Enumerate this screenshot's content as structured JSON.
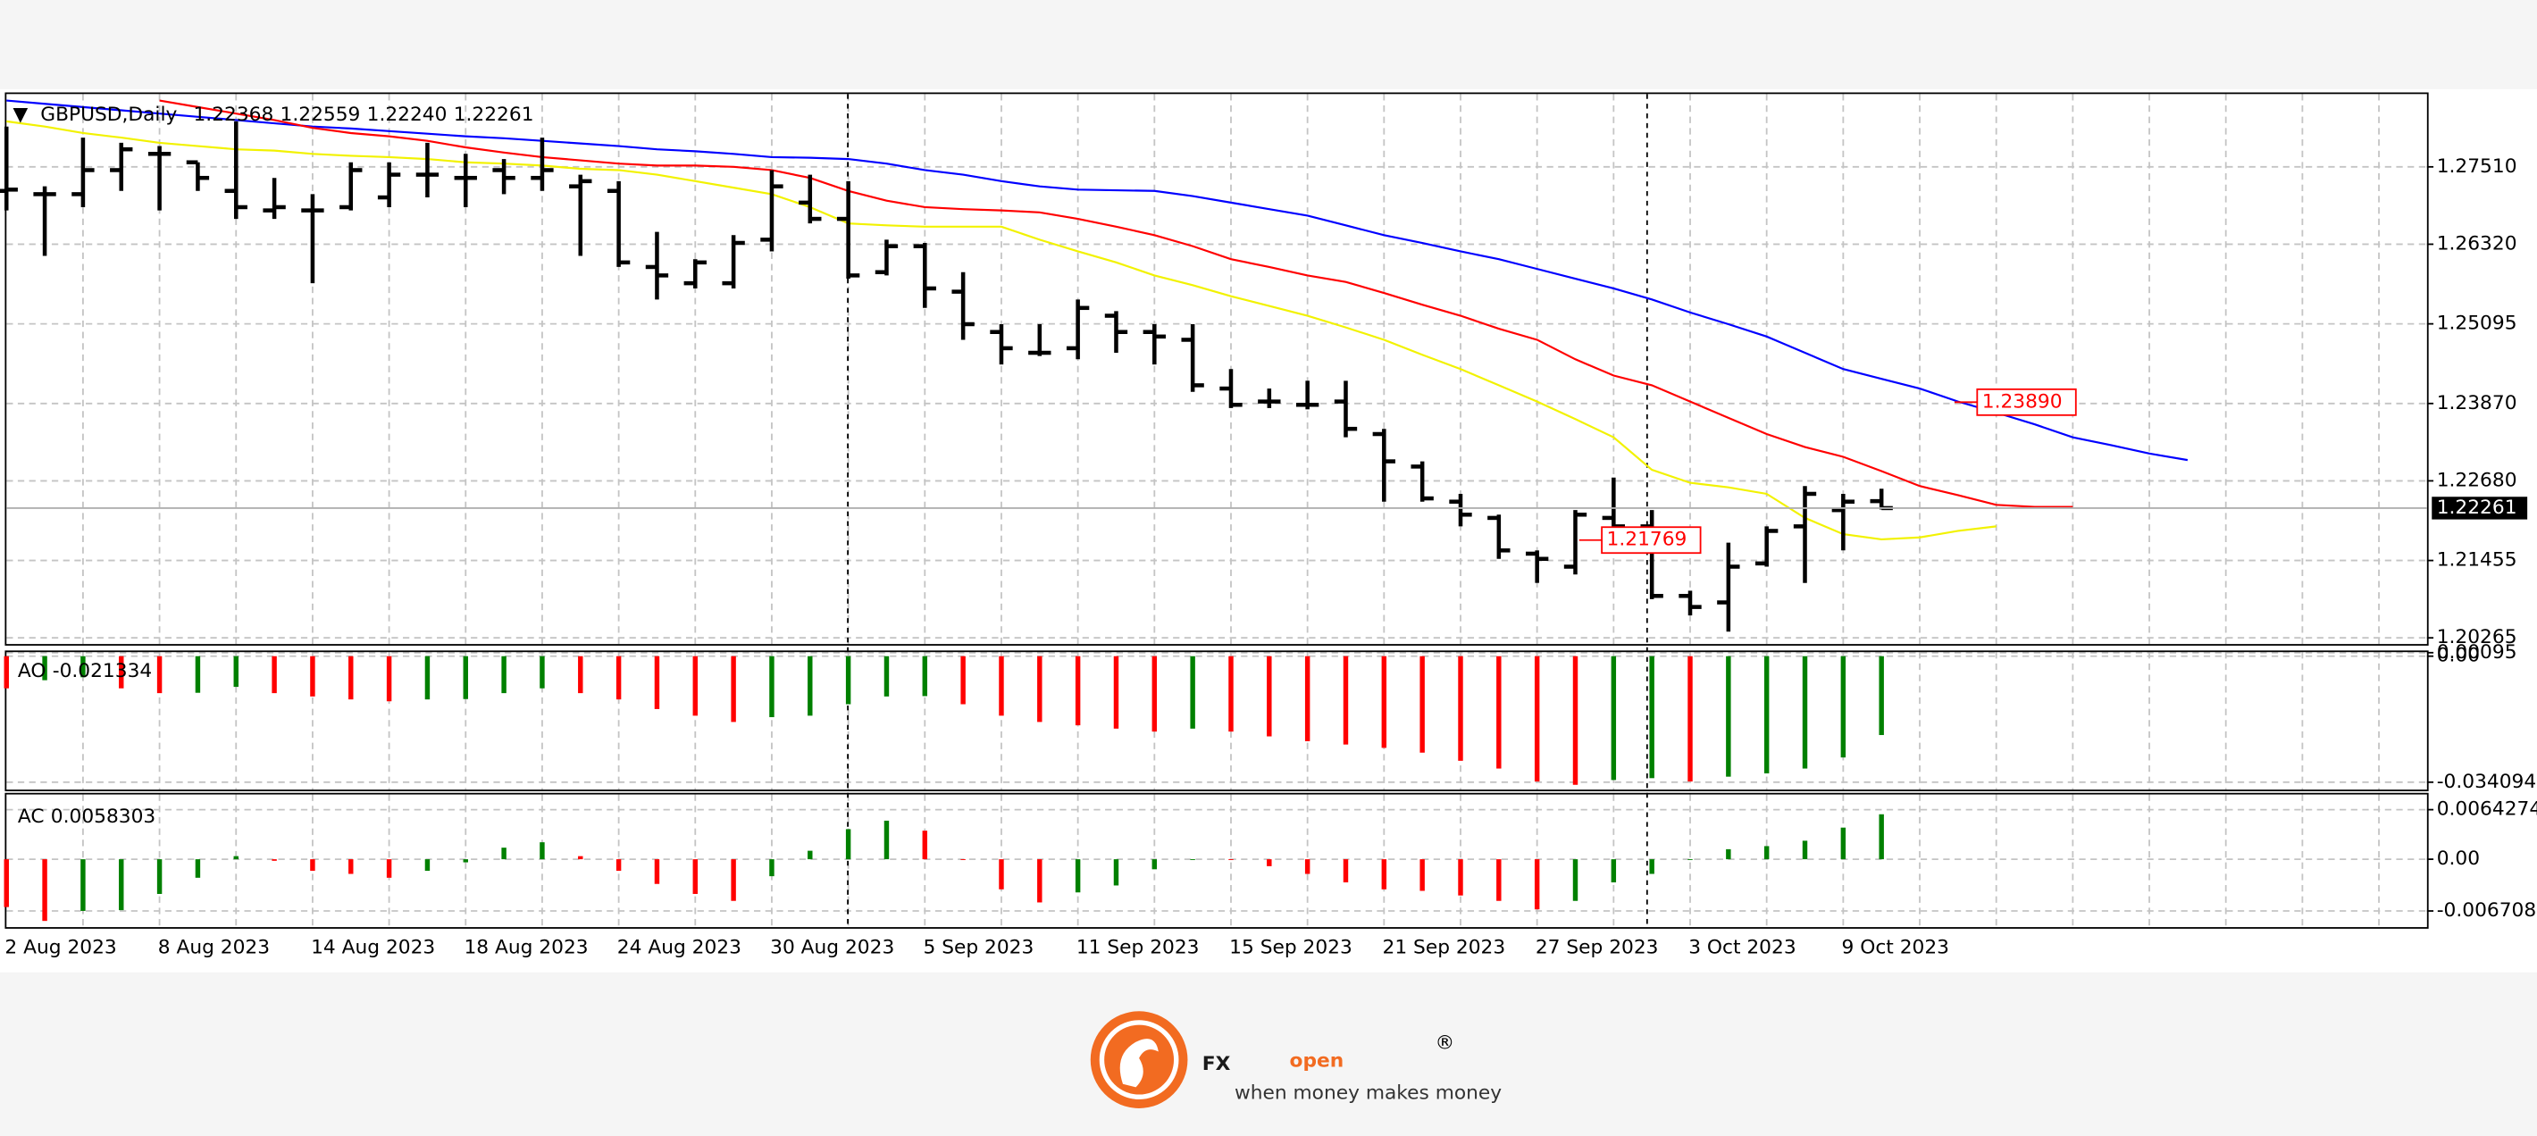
{
  "chart_data": [
    {
      "type": "ohlc",
      "title": "GBPUSD,Daily",
      "header_values": [
        "1.22368",
        "1.22559",
        "1.22240",
        "1.22261"
      ],
      "categories": [
        "2 Aug 2023",
        null,
        null,
        null,
        "8 Aug 2023",
        null,
        null,
        null,
        "14 Aug 2023",
        null,
        null,
        null,
        "18 Aug 2023",
        null,
        null,
        null,
        "24 Aug 2023",
        null,
        null,
        null,
        "30 Aug 2023",
        null,
        null,
        null,
        "5 Sep 2023",
        null,
        null,
        null,
        "11 Sep 2023",
        null,
        null,
        null,
        "15 Sep 2023",
        null,
        null,
        null,
        "21 Sep 2023",
        null,
        null,
        null,
        "27 Sep 2023",
        null,
        null,
        null,
        "3 Oct 2023",
        null,
        null,
        null,
        "9 Oct 2023",
        null,
        null,
        null,
        null,
        null,
        null,
        null,
        null,
        null
      ],
      "open": [
        1.2714,
        1.2709,
        1.2709,
        1.2746,
        1.2771,
        1.2758,
        1.2714,
        1.2684,
        1.2684,
        1.2689,
        1.2704,
        1.2739,
        1.2734,
        1.2746,
        1.2734,
        1.2721,
        1.2714,
        1.2597,
        1.2572,
        1.2572,
        1.2639,
        1.2696,
        1.2671,
        1.2589,
        1.2629,
        1.2559,
        1.2497,
        1.2465,
        1.2472,
        1.2522,
        1.2497,
        1.2485,
        1.241,
        1.239,
        1.2385,
        1.239,
        1.234,
        1.229,
        1.2236,
        1.2211,
        1.2156,
        1.2136,
        1.2211,
        1.2198,
        1.2091,
        1.2081,
        1.2141,
        1.2198,
        1.2223,
        1.22368,
        null,
        null,
        null,
        null,
        null,
        null,
        null,
        null
      ],
      "high": [
        1.2813,
        1.2721,
        1.2796,
        1.2788,
        1.2783,
        1.2758,
        1.2821,
        1.2734,
        1.2709,
        1.2758,
        1.2758,
        1.2788,
        1.2771,
        1.2763,
        1.2796,
        1.2739,
        1.2729,
        1.2651,
        1.2609,
        1.2646,
        1.2746,
        1.2739,
        1.2729,
        1.2639,
        1.2634,
        1.2589,
        1.2509,
        1.2509,
        1.2547,
        1.2529,
        1.2509,
        1.2509,
        1.244,
        1.241,
        1.2422,
        1.2422,
        1.2348,
        1.2298,
        1.2248,
        1.2216,
        1.2161,
        1.2223,
        1.2273,
        1.2223,
        1.2099,
        1.2173,
        1.2198,
        1.226,
        1.2248,
        1.22559,
        null,
        null,
        null,
        null,
        null,
        null,
        null,
        null
      ],
      "low": [
        1.2684,
        1.2614,
        1.2689,
        1.2714,
        1.2684,
        1.2714,
        1.2671,
        1.2671,
        1.2572,
        1.2684,
        1.2689,
        1.2704,
        1.2689,
        1.2709,
        1.2714,
        1.2614,
        1.2597,
        1.2547,
        1.2564,
        1.2564,
        1.2621,
        1.2664,
        1.2579,
        1.2584,
        1.2534,
        1.2485,
        1.2447,
        1.246,
        1.2455,
        1.2465,
        1.2447,
        1.2405,
        1.238,
        1.238,
        1.2378,
        1.2335,
        1.2236,
        1.2236,
        1.2198,
        1.2148,
        1.2111,
        1.2124,
        1.2186,
        1.2086,
        1.2061,
        1.2036,
        1.2136,
        1.2111,
        1.2161,
        1.2224,
        null,
        null,
        null,
        null,
        null,
        null,
        null,
        null
      ],
      "close": [
        1.2716,
        1.2709,
        1.2746,
        1.2778,
        1.2771,
        1.2734,
        1.2689,
        1.2689,
        1.2684,
        1.2746,
        1.2739,
        1.2739,
        1.2734,
        1.2734,
        1.2746,
        1.2729,
        1.2604,
        1.2584,
        1.2604,
        1.2634,
        1.2721,
        1.2671,
        1.2584,
        1.2629,
        1.2564,
        1.2509,
        1.2472,
        1.2465,
        1.2534,
        1.2497,
        1.249,
        1.2415,
        1.2385,
        1.239,
        1.2385,
        1.2348,
        1.2298,
        1.2241,
        1.2216,
        1.2161,
        1.2148,
        1.2216,
        1.2198,
        1.2091,
        1.2074,
        1.2136,
        1.2191,
        1.2248,
        1.2236,
        1.22261,
        null,
        null,
        null,
        null,
        null,
        null,
        null,
        null
      ],
      "bar_color": "#000000",
      "series": [
        {
          "color": "#0000ff",
          "values": [
            1.2853,
            1.2848,
            1.2843,
            1.2838,
            1.2833,
            1.2828,
            1.2823,
            1.2818,
            1.2813,
            1.281,
            1.2806,
            1.2802,
            1.2798,
            1.2795,
            1.2791,
            1.2787,
            1.2783,
            1.2778,
            1.2775,
            1.2771,
            1.2766,
            1.2765,
            1.2763,
            1.2756,
            1.2746,
            1.2739,
            1.2729,
            1.2721,
            1.2716,
            1.2715,
            1.2714,
            1.2706,
            1.2696,
            1.2686,
            1.2676,
            1.2661,
            1.2646,
            1.2634,
            1.2621,
            1.2609,
            1.2594,
            1.2579,
            1.2564,
            1.2547,
            1.2527,
            1.2509,
            1.249,
            1.2465,
            1.244,
            1.2425,
            1.241,
            1.239,
            1.2373,
            1.2355,
            1.2335,
            1.2323,
            1.231,
            1.23
          ]
        },
        {
          "color": "#ff0000",
          "values": [
            null,
            null,
            null,
            null,
            1.2853,
            1.2843,
            1.2833,
            1.2823,
            1.2811,
            1.2803,
            1.2798,
            1.2791,
            1.2781,
            1.2773,
            1.2766,
            1.2761,
            1.2756,
            1.2753,
            1.2753,
            1.2751,
            1.2746,
            1.2734,
            1.2714,
            1.2699,
            1.2689,
            1.2686,
            1.2684,
            1.2681,
            1.2671,
            1.2659,
            1.2646,
            1.2629,
            1.2609,
            1.2597,
            1.2584,
            1.2574,
            1.2557,
            1.2539,
            1.2522,
            1.2502,
            1.2485,
            1.2455,
            1.243,
            1.2415,
            1.239,
            1.2365,
            1.234,
            1.232,
            1.2305,
            1.2283,
            1.226,
            1.2246,
            1.2231,
            1.2228,
            1.2228,
            null,
            null,
            null
          ]
        },
        {
          "color": "#f2f200",
          "values": [
            1.2821,
            1.2813,
            1.2803,
            1.2796,
            1.2788,
            1.2783,
            1.2778,
            1.2776,
            1.2771,
            1.2768,
            1.2766,
            1.2763,
            1.2758,
            1.2756,
            1.2753,
            1.2748,
            1.2746,
            1.2739,
            1.2729,
            1.2719,
            1.2709,
            1.2689,
            1.2664,
            1.2661,
            1.2659,
            1.2659,
            1.2659,
            1.2639,
            1.2621,
            1.2604,
            1.2584,
            1.2569,
            1.2552,
            1.2537,
            1.2522,
            1.2504,
            1.2485,
            1.2462,
            1.244,
            1.2415,
            1.239,
            1.2363,
            1.2335,
            1.2285,
            1.2265,
            1.2258,
            1.2248,
            1.2211,
            1.2186,
            1.2178,
            1.2181,
            1.2191,
            1.2198,
            null,
            null,
            null,
            null,
            null
          ]
        }
      ],
      "annotations": [
        {
          "value": 1.2389,
          "label": "1.23890",
          "color": "#ff0000"
        },
        {
          "value": 1.21769,
          "label": "1.21769",
          "color": "#ff0000"
        }
      ],
      "ylim": [
        1.2017,
        1.2863
      ],
      "yticks": [
        {
          "value": 1.2751,
          "label": "1.27510"
        },
        {
          "value": 1.2632,
          "label": "1.26320"
        },
        1.25095,
        {
          "value": 1.2387,
          "label": "1.23870"
        },
        {
          "value": 1.2268,
          "label": "1.22680"
        },
        1.21455,
        1.20265
      ],
      "grid": true
    },
    {
      "type": "bar",
      "title": "AO",
      "values": [
        -0.0087,
        -0.0065,
        -0.0057,
        -0.0087,
        -0.01,
        -0.0099,
        -0.0083,
        -0.01,
        -0.0109,
        -0.0117,
        -0.0122,
        -0.0117,
        -0.0116,
        -0.01,
        -0.0087,
        -0.01,
        -0.0117,
        -0.0143,
        -0.0161,
        -0.0178,
        -0.0165,
        -0.0161,
        -0.013,
        -0.0109,
        -0.0108,
        -0.013,
        -0.0161,
        -0.0178,
        -0.0187,
        -0.0196,
        -0.0204,
        -0.0196,
        -0.0204,
        -0.0217,
        -0.023,
        -0.0239,
        -0.0248,
        -0.0261,
        -0.0283,
        -0.0304,
        -0.0339,
        -0.0348,
        -0.0335,
        -0.033,
        -0.0339,
        -0.0326,
        -0.0317,
        -0.0304,
        -0.0274,
        -0.021334
      ],
      "colors": {
        "up": "#008000",
        "down": "#ff0000"
      },
      "ylim": [
        -0.0361,
        0.0011
      ],
      "yticks": [
        0.00095,
        {
          "value": 0,
          "label": "0.00"
        },
        -0.034094
      ],
      "grid": true
    },
    {
      "type": "bar",
      "title": "AC",
      "values": [
        -0.0062,
        -0.008,
        -0.0067,
        -0.0066,
        -0.0045,
        -0.0024,
        0.0004,
        -0.0002,
        -0.0015,
        -0.0019,
        -0.0024,
        -0.0015,
        -0.0004,
        0.0015,
        0.0022,
        0.0004,
        -0.0015,
        -0.0032,
        -0.0045,
        -0.0054,
        -0.0022,
        0.0011,
        0.0039,
        0.005,
        0.0037,
        0,
        -0.0039,
        -0.0056,
        -0.0043,
        -0.0034,
        -0.0013,
        0,
        -0.0001,
        -0.0009,
        -0.0019,
        -0.003,
        -0.0039,
        -0.0041,
        -0.0047,
        -0.0054,
        -0.0065,
        -0.0054,
        -0.003,
        -0.0019,
        0,
        0.0013,
        0.0017,
        0.0024,
        0.0041,
        0.0058303
      ],
      "colors": {
        "up": "#008000",
        "down": "#ff0000"
      },
      "ylim": [
        -0.0088,
        0.0084
      ],
      "yticks": [
        0.0064274,
        {
          "value": 0,
          "label": "0.00"
        },
        -0.006708
      ],
      "grid": true
    }
  ],
  "logo": {
    "brand_fx": "FX",
    "brand_open": "open",
    "registered": "®",
    "tagline": "when money makes money"
  }
}
